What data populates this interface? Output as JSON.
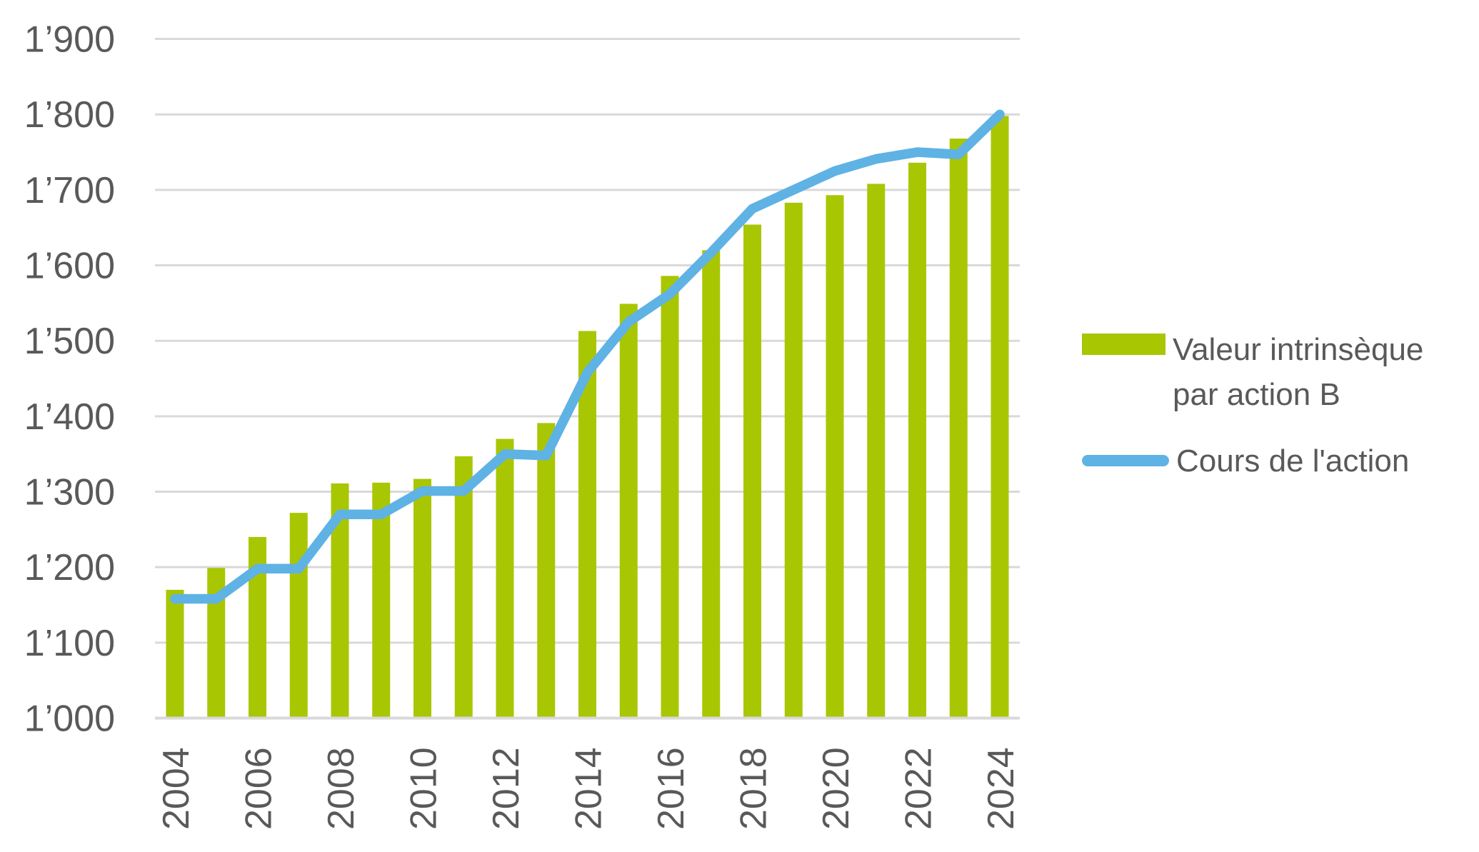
{
  "chart_data": {
    "type": "bar",
    "subtype": "combo-bar-line",
    "title": "",
    "categories": [
      2004,
      2005,
      2006,
      2007,
      2008,
      2009,
      2010,
      2011,
      2012,
      2013,
      2014,
      2015,
      2016,
      2017,
      2018,
      2019,
      2020,
      2021,
      2022,
      2023,
      2024
    ],
    "series": [
      {
        "name": "Valeur intrinsèque par action B",
        "kind": "bar",
        "color": "#A9C603",
        "values": [
          1170,
          1199,
          1240,
          1272,
          1311,
          1312,
          1317,
          1347,
          1370,
          1391,
          1513,
          1549,
          1586,
          1620,
          1654,
          1683,
          1693,
          1708,
          1736,
          1768,
          1798
        ]
      },
      {
        "name": "Cours de l'action",
        "kind": "line",
        "color": "#5FB2E4",
        "values": [
          1158,
          1158,
          1198,
          1198,
          1270,
          1270,
          1301,
          1301,
          1350,
          1348,
          1458,
          1525,
          1562,
          1617,
          1675,
          1700,
          1725,
          1741,
          1750,
          1747,
          1800
        ]
      }
    ],
    "y_axis": {
      "min": 1000,
      "max": 1900,
      "tick_step": 100,
      "tick_labels": [
        "1’000",
        "1’100",
        "1’200",
        "1’300",
        "1’400",
        "1’500",
        "1’600",
        "1’700",
        "1’800",
        "1’900"
      ]
    },
    "x_axis": {
      "tick_labels": [
        "2004",
        "2006",
        "2008",
        "2010",
        "2012",
        "2014",
        "2016",
        "2018",
        "2020",
        "2022",
        "2024"
      ],
      "label_rotation_deg": -90
    },
    "grid": "horizontal",
    "legend_position": "right",
    "colors": {
      "bar": "#A9C603",
      "line": "#5FB2E4",
      "gridline": "#D9D9D9",
      "axis_line": "#D9D9D9",
      "tick_text": "#595959",
      "background": "#FFFFFF"
    }
  },
  "legend": {
    "items": [
      {
        "label": "Valeur intrinsèque par action B",
        "swatch": "bar-swatch-green"
      },
      {
        "label": "Cours de l'action",
        "swatch": "line-swatch-blue"
      }
    ]
  }
}
